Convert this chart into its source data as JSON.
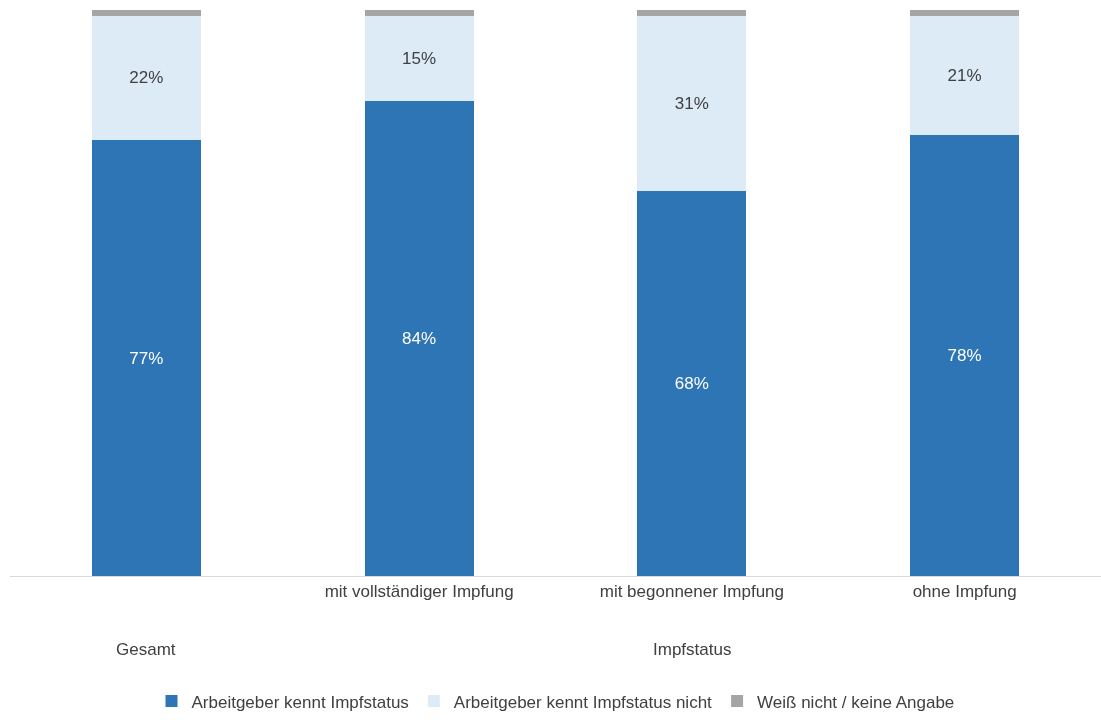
{
  "chart_data": {
    "type": "bar",
    "stacked": true,
    "categories": [
      null,
      "mit vollständiger Impfung",
      "mit begonnener Impfung",
      "ohne Impfung"
    ],
    "series": [
      {
        "name": "Arbeitgeber kennt Impfstatus",
        "color": "#2e75b6",
        "values": [
          77,
          84,
          68,
          78
        ],
        "value_labels": [
          "77%",
          "84%",
          "68%",
          "78%"
        ]
      },
      {
        "name": "Arbeitgeber kennt Impfstatus nicht",
        "color": "#ddebf7",
        "values": [
          22,
          15,
          31,
          21
        ],
        "value_labels": [
          "22%",
          "15%",
          "31%",
          "21%"
        ]
      },
      {
        "name": "Weiß nicht / keine Angabe",
        "color": "#a5a5a5",
        "values": [
          1,
          1,
          1,
          1
        ]
      }
    ],
    "ylim": [
      0,
      100
    ],
    "tick_labels": "x",
    "grid": false,
    "legend": "bottom",
    "annotations": [
      "Gesamt",
      "Impfstatus"
    ]
  }
}
